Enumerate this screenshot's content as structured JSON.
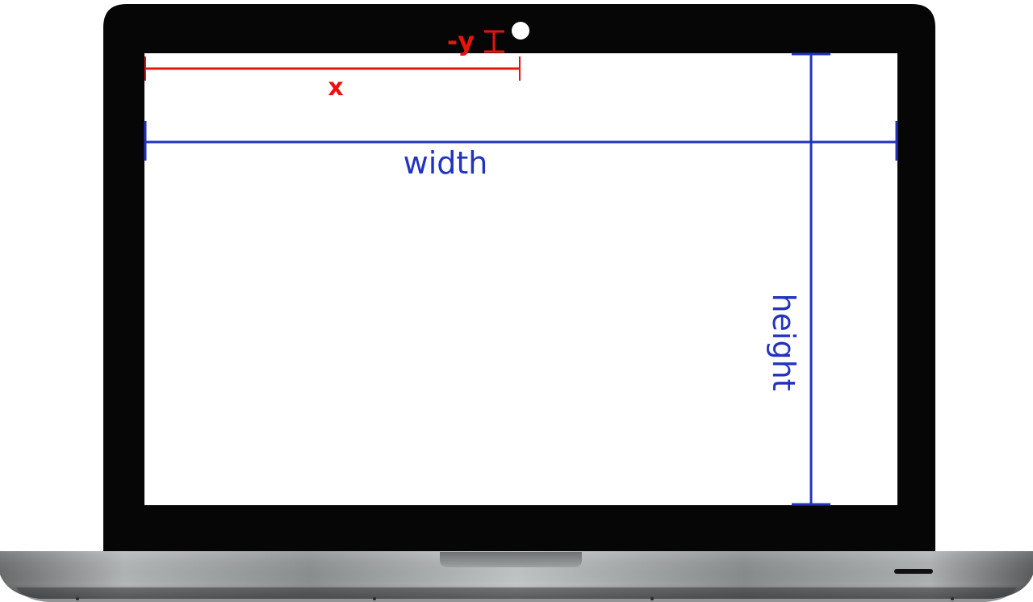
{
  "diagram": {
    "labels": {
      "x": "x",
      "neg_y": "-y",
      "width": "width",
      "height": "height"
    },
    "colors": {
      "bezel": "#060606",
      "screen": "#ffffff",
      "red_marker": "#e8140c",
      "blue_marker": "#2233c0",
      "camera_dot": "#ffffff",
      "base_light": "#c7cacb",
      "base_dark": "#5e6061"
    }
  }
}
